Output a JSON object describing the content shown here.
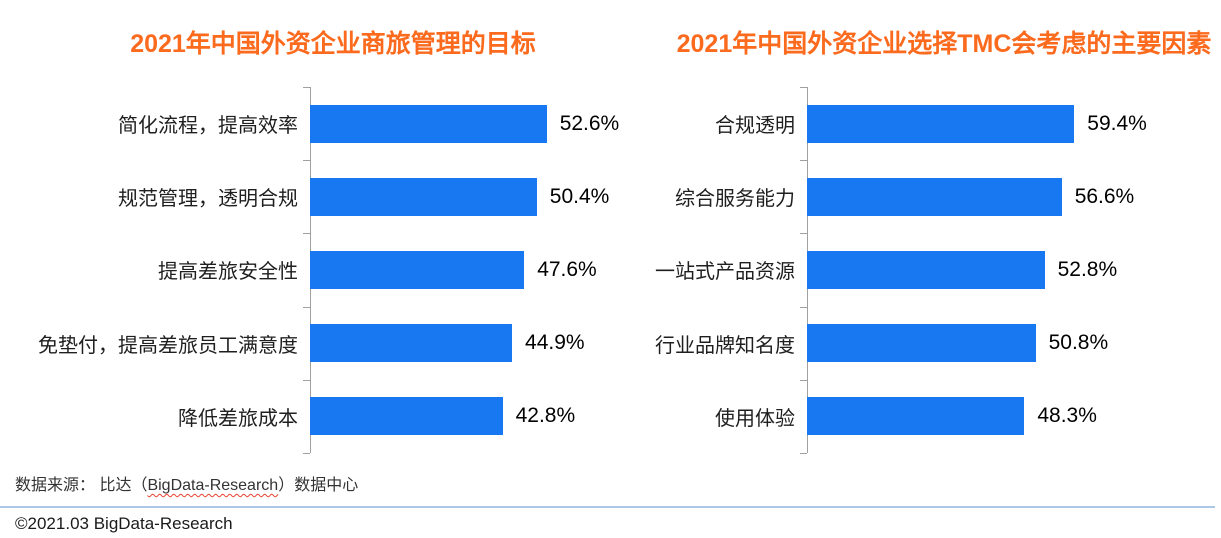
{
  "chart_data": [
    {
      "type": "bar",
      "orientation": "horizontal",
      "title": "2021年中国外资企业商旅管理的目标",
      "categories": [
        "简化流程，提高效率",
        "规范管理，透明合规",
        "提高差旅安全性",
        "免垫付，提高差旅员工满意度",
        "降低差旅成本"
      ],
      "values": [
        52.6,
        50.4,
        47.6,
        44.9,
        42.8
      ],
      "data_labels": [
        "52.6%",
        "50.4%",
        "47.6%",
        "44.9%",
        "42.8%"
      ],
      "unit": "%",
      "xlim": [
        0,
        65
      ],
      "grid": false,
      "legend": false,
      "bar_color": "#1778f2"
    },
    {
      "type": "bar",
      "orientation": "horizontal",
      "title": "2021年中国外资企业选择TMC会考虑的主要因素",
      "categories": [
        "合规透明",
        "综合服务能力",
        "一站式产品资源",
        "行业品牌知名度",
        "使用体验"
      ],
      "values": [
        59.4,
        56.6,
        52.8,
        50.8,
        48.3
      ],
      "data_labels": [
        "59.4%",
        "56.6%",
        "52.8%",
        "50.8%",
        "48.3%"
      ],
      "unit": "%",
      "xlim": [
        0,
        65
      ],
      "grid": false,
      "legend": false,
      "bar_color": "#1778f2"
    }
  ],
  "footer": {
    "source_prefix": "数据来源： 比达（",
    "source_brand": "BigData-Research",
    "source_suffix": "）数据中心",
    "copyright": "©2021.03 BigData-Research"
  },
  "colors": {
    "title_orange": "#fb6a1d",
    "bar_blue": "#1778f2",
    "axis_gray": "#a0a0a0",
    "divider_blue": "#abc8e8"
  }
}
